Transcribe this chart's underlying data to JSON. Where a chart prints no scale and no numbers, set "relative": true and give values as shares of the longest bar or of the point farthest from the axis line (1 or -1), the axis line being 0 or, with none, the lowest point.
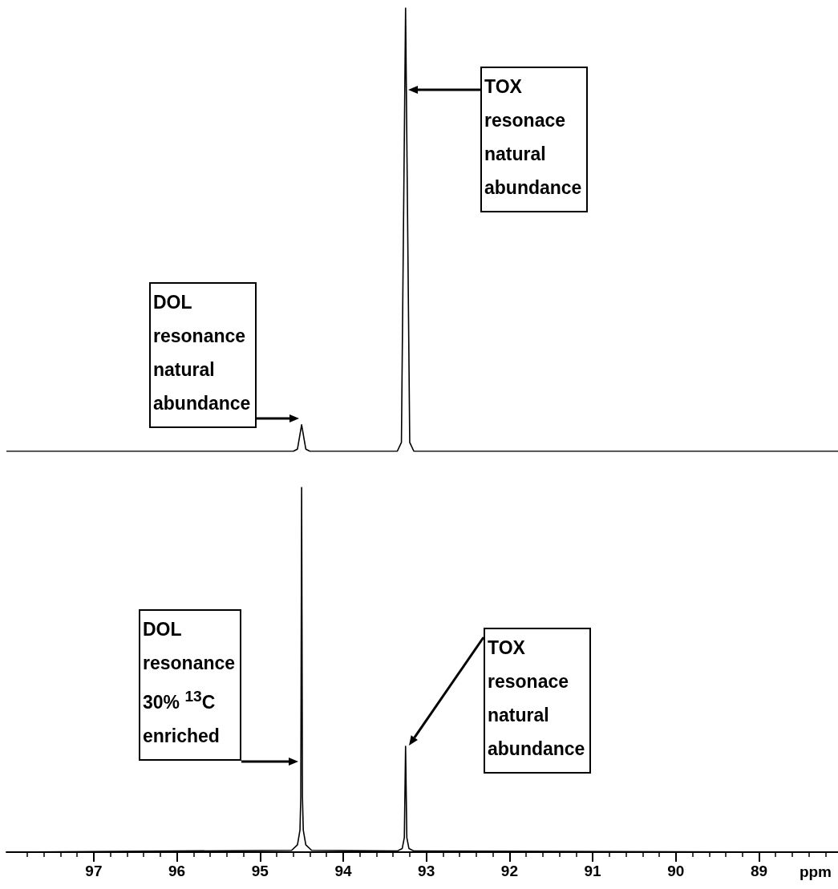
{
  "chart_data": [
    {
      "type": "line",
      "relative": true,
      "marker": "none",
      "grid": false,
      "tick_labels": false,
      "categories": [
        null,
        null,
        null,
        null,
        null,
        null,
        null,
        null,
        null,
        null,
        null,
        null,
        null,
        null,
        null,
        null,
        null,
        null,
        null,
        null,
        null,
        null,
        null,
        null,
        null,
        null,
        null,
        null,
        null,
        null,
        null,
        null,
        null,
        null,
        null,
        null,
        null,
        null,
        null,
        null,
        null,
        null,
        null,
        null,
        null,
        null,
        null,
        null,
        null,
        null,
        null,
        null,
        null,
        null,
        null,
        null,
        null,
        null,
        null,
        null,
        null,
        null,
        null,
        null,
        null,
        null,
        null,
        null,
        null,
        null,
        null,
        null,
        null,
        null,
        null,
        null,
        null,
        null,
        null,
        null,
        null,
        null,
        null,
        null,
        null,
        null,
        null,
        null,
        null,
        null,
        null,
        null,
        null,
        null,
        null,
        null,
        null,
        null,
        null,
        null,
        null,
        null,
        null,
        null,
        null,
        null,
        null,
        null,
        null,
        null,
        null,
        null,
        null,
        null,
        null,
        null,
        null,
        null,
        null,
        null,
        null,
        null,
        null,
        null,
        null,
        null,
        null,
        null,
        null,
        null,
        null,
        null,
        null,
        null,
        null,
        null,
        null,
        null,
        null,
        null,
        null,
        null,
        null,
        null,
        null,
        null,
        null,
        null,
        null,
        null,
        null,
        null,
        null,
        null,
        null,
        null,
        null,
        null,
        null,
        null,
        null,
        null,
        null,
        null,
        null,
        null,
        null,
        null,
        null,
        null,
        null,
        null,
        null,
        null,
        null,
        null,
        null,
        null,
        null,
        null,
        null,
        null,
        null,
        null,
        null,
        null,
        null,
        null,
        null,
        null,
        null,
        null,
        null,
        null,
        null,
        null,
        null,
        null,
        null,
        null,
        null
      ],
      "series": [
        {
          "color": "#000000",
          "values": [
            0,
            0,
            0,
            0,
            0,
            0,
            0,
            0,
            0,
            0,
            0,
            0,
            0,
            0,
            0,
            0,
            0,
            0,
            0,
            0,
            0,
            0,
            0,
            0,
            0,
            0,
            0,
            0,
            0,
            0,
            0,
            0,
            0,
            0,
            0,
            0,
            0,
            0,
            0,
            0,
            0,
            0,
            0,
            0,
            0,
            0,
            0,
            0,
            0,
            0,
            0,
            0,
            0,
            0,
            0,
            0,
            0,
            0,
            0,
            0,
            0,
            0,
            0,
            0,
            0,
            0,
            0,
            0,
            0,
            0,
            0.005,
            0.06,
            0.005,
            0,
            0,
            0,
            0,
            0,
            0,
            0,
            0,
            0,
            0,
            0,
            0,
            0,
            0,
            0,
            0,
            0,
            0,
            0,
            0,
            0,
            0,
            0.02,
            1,
            0.02,
            0,
            0,
            0,
            0,
            0,
            0,
            0,
            0,
            0,
            0,
            0,
            0,
            0,
            0,
            0,
            0,
            0,
            0,
            0,
            0,
            0,
            0,
            0,
            0,
            0,
            0,
            0,
            0,
            0,
            0,
            0,
            0,
            0,
            0,
            0,
            0,
            0,
            0,
            0,
            0,
            0,
            0,
            0,
            0,
            0,
            0,
            0,
            0,
            0,
            0,
            0,
            0,
            0,
            0,
            0,
            0,
            0,
            0,
            0,
            0,
            0,
            0,
            0,
            0,
            0,
            0,
            0,
            0,
            0,
            0,
            0,
            0,
            0,
            0,
            0,
            0,
            0,
            0,
            0,
            0,
            0,
            0,
            0,
            0,
            0,
            0,
            0,
            0,
            0,
            0,
            0,
            0,
            0,
            0,
            0,
            0,
            0,
            0,
            0,
            0,
            0,
            0,
            0
          ]
        }
      ],
      "annotations": [
        "TOX\nresonace\nnatural\nabundance",
        "DOL\nresonance\nnatural\nabundance"
      ]
    },
    {
      "type": "line",
      "relative": true,
      "xlim": [
        98.05,
        88.05
      ],
      "marker": "none",
      "grid": false,
      "tick_labels": "x",
      "xlabel": "ppm",
      "xticks": [
        {
          "value": 97.8,
          "label": null
        },
        {
          "value": 97.6,
          "label": null
        },
        {
          "value": 97.4,
          "label": null
        },
        {
          "value": 97.2,
          "label": null
        },
        97,
        {
          "value": 96.8,
          "label": null
        },
        {
          "value": 96.6,
          "label": null
        },
        {
          "value": 96.4,
          "label": null
        },
        {
          "value": 96.2,
          "label": null
        },
        96,
        {
          "value": 95.8,
          "label": null
        },
        {
          "value": 95.6,
          "label": null
        },
        {
          "value": 95.4,
          "label": null
        },
        {
          "value": 95.2,
          "label": null
        },
        95,
        {
          "value": 94.8,
          "label": null
        },
        {
          "value": 94.6,
          "label": null
        },
        {
          "value": 94.4,
          "label": null
        },
        {
          "value": 94.2,
          "label": null
        },
        94,
        {
          "value": 93.8,
          "label": null
        },
        {
          "value": 93.6,
          "label": null
        },
        {
          "value": 93.4,
          "label": null
        },
        {
          "value": 93.2,
          "label": null
        },
        93,
        {
          "value": 92.8,
          "label": null
        },
        {
          "value": 92.6,
          "label": null
        },
        {
          "value": 92.4,
          "label": null
        },
        {
          "value": 92.2,
          "label": null
        },
        92,
        {
          "value": 91.8,
          "label": null
        },
        {
          "value": 91.6,
          "label": null
        },
        {
          "value": 91.4,
          "label": null
        },
        {
          "value": 91.2,
          "label": null
        },
        91,
        {
          "value": 90.8,
          "label": null
        },
        {
          "value": 90.6,
          "label": null
        },
        {
          "value": 90.4,
          "label": null
        },
        {
          "value": 90.2,
          "label": null
        },
        90,
        {
          "value": 89.8,
          "label": null
        },
        {
          "value": 89.6,
          "label": null
        },
        {
          "value": 89.4,
          "label": null
        },
        {
          "value": 89.2,
          "label": null
        },
        89,
        {
          "value": 88.8,
          "label": null
        },
        {
          "value": 88.6,
          "label": null
        },
        {
          "value": 88.4,
          "label": null
        },
        {
          "value": 88.2,
          "label": null
        }
      ],
      "x": [
        98.05,
        94.62,
        94.55,
        94.52,
        94.51,
        94.5,
        94.49,
        94.48,
        94.45,
        94.38,
        93.35,
        93.29,
        93.265,
        93.25,
        93.235,
        93.21,
        93.15,
        88.05
      ],
      "series": [
        {
          "color": "#000000",
          "values": [
            0,
            0.005,
            0.02,
            0.06,
            0.15,
            1,
            0.15,
            0.06,
            0.02,
            0.005,
            0.003,
            0.01,
            0.04,
            0.29,
            0.04,
            0.01,
            0.003,
            0
          ]
        }
      ],
      "annotations": [
        "DOL\nresonance\n30% $^{13}$C\nenriched",
        "TOX\nresonace\nnatural\nabundance"
      ]
    }
  ]
}
